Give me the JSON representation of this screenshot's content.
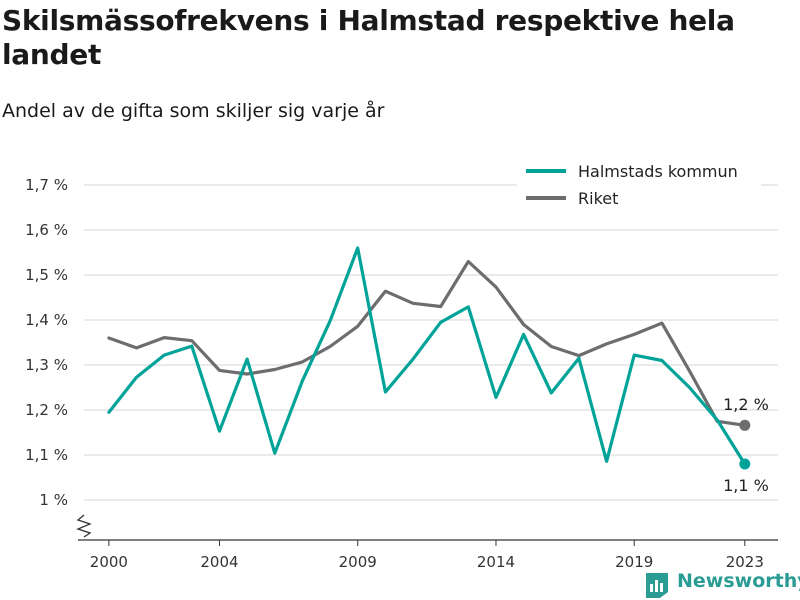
{
  "title": "Skilsmässofrekvens i Halmstad respektive hela landet",
  "subtitle": "Andel av de gifta som skiljer sig varje år",
  "logo": "Newsworthy",
  "colors": {
    "halmstad": "#00a398",
    "riket": "#6d6d6f",
    "grid": "#d6d6d6",
    "axis": "#333333",
    "brand": "#2b9c94"
  },
  "chart_data": {
    "type": "line",
    "x": [
      2000,
      2001,
      2002,
      2003,
      2004,
      2005,
      2006,
      2007,
      2008,
      2009,
      2010,
      2011,
      2012,
      2013,
      2014,
      2015,
      2016,
      2017,
      2018,
      2019,
      2020,
      2021,
      2022,
      2023
    ],
    "series": [
      {
        "name": "Halmstads kommun",
        "color": "#00a398",
        "values": [
          1.195,
          1.273,
          1.322,
          1.342,
          1.153,
          1.313,
          1.104,
          1.265,
          1.398,
          1.56,
          1.24,
          1.313,
          1.395,
          1.429,
          1.228,
          1.368,
          1.238,
          1.315,
          1.086,
          1.322,
          1.31,
          1.25,
          1.178,
          1.08
        ]
      },
      {
        "name": "Riket",
        "color": "#6d6d6f",
        "values": [
          1.36,
          1.338,
          1.361,
          1.354,
          1.288,
          1.28,
          1.29,
          1.307,
          1.341,
          1.386,
          1.464,
          1.437,
          1.43,
          1.53,
          1.473,
          1.39,
          1.341,
          1.321,
          1.347,
          1.368,
          1.393,
          1.287,
          1.175,
          1.166
        ]
      }
    ],
    "xticks": [
      2000,
      2004,
      2009,
      2014,
      2019,
      2023
    ],
    "xtick_labels": [
      "2000",
      "2004",
      "2009",
      "2014",
      "2019",
      "2023"
    ],
    "yticks": [
      1.0,
      1.1,
      1.2,
      1.3,
      1.4,
      1.5,
      1.6,
      1.7
    ],
    "ytick_labels": [
      "1 %",
      "1,1 %",
      "1,2 %",
      "1,3 %",
      "1,4 %",
      "1,5 %",
      "1,6 %",
      "1,7 %"
    ],
    "xlim": [
      1999.1,
      2024.2
    ],
    "ylim": [
      1.0,
      1.7
    ],
    "grid": true,
    "y_axis_break": true,
    "legend": "top-right",
    "end_labels": {
      "riket": "1,2 %",
      "halmstad": "1,1 %"
    }
  }
}
